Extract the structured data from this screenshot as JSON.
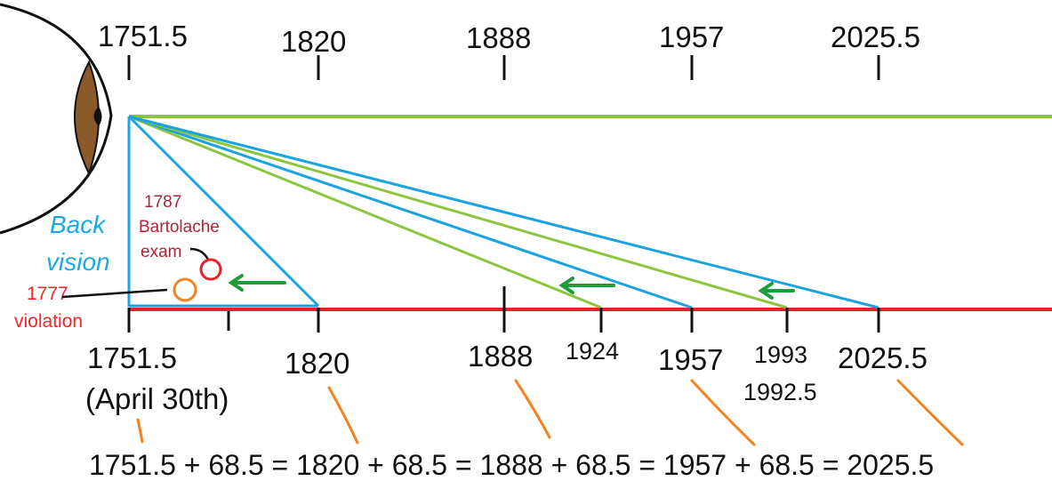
{
  "top_scale": {
    "ticks": [
      "1751.5",
      "1820",
      "1888",
      "1957",
      "2025.5"
    ]
  },
  "bottom_scale": {
    "labels": {
      "start": "1751.5",
      "start_note": "(April 30th)",
      "t1820": "1820",
      "t1888": "1888",
      "t1924": "1924",
      "t1957": "1957",
      "t1993": "1993",
      "t1992_5": "1992.5",
      "t2025_5": "2025.5"
    }
  },
  "back_vision": {
    "line1": "Back",
    "line2": "vision"
  },
  "events": {
    "bartolache_line1": "1787",
    "bartolache_line2": "Bartolache",
    "bartolache_line3": "exam",
    "violation_year": "1777",
    "violation_word": "violation"
  },
  "formula": "1751.5 + 68.5 = 1820 + 68.5 = 1888 + 68.5 = 1957 + 68.5 = 2025.5",
  "colors": {
    "green_line": "#8cc63f",
    "blue_line": "#1aa3e0",
    "red_line": "#e8202a",
    "orange_marker": "#f58220",
    "arrow_green": "#1e9e3a",
    "eye_iris": "#8b5a2b"
  }
}
